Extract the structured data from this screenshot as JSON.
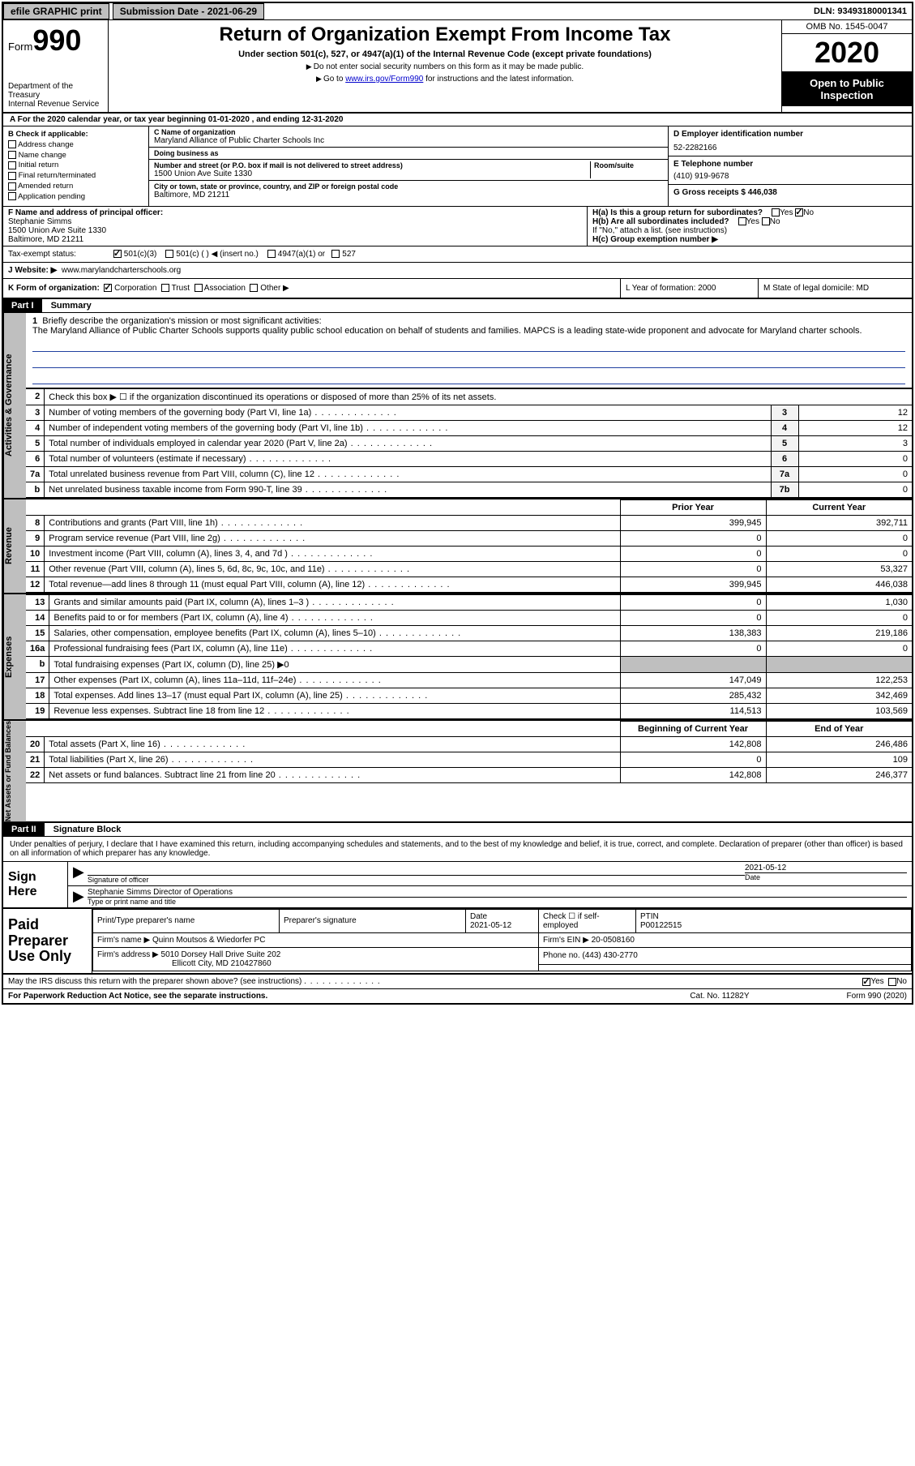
{
  "topbar": {
    "efile_label": "efile GRAPHIC print",
    "submission_label": "Submission Date - 2021-06-29",
    "dln_label": "DLN: 93493180001341"
  },
  "header": {
    "form_prefix": "Form",
    "form_number": "990",
    "dept1": "Department of the Treasury",
    "dept2": "Internal Revenue Service",
    "title": "Return of Organization Exempt From Income Tax",
    "subtitle": "Under section 501(c), 527, or 4947(a)(1) of the Internal Revenue Code (except private foundations)",
    "note1": "Do not enter social security numbers on this form as it may be made public.",
    "note2_pre": "Go to ",
    "note2_link": "www.irs.gov/Form990",
    "note2_post": " for instructions and the latest information.",
    "omb": "OMB No. 1545-0047",
    "year": "2020",
    "open": "Open to Public Inspection"
  },
  "row_a": "A For the 2020 calendar year, or tax year beginning 01-01-2020   , and ending 12-31-2020",
  "sec_b": {
    "label": "B Check if applicable:",
    "items": [
      "Address change",
      "Name change",
      "Initial return",
      "Final return/terminated",
      "Amended return",
      "Application pending"
    ]
  },
  "sec_c": {
    "name_label": "C Name of organization",
    "name": "Maryland Alliance of Public Charter Schools Inc",
    "dba_label": "Doing business as",
    "dba": "",
    "addr_label": "Number and street (or P.O. box if mail is not delivered to street address)",
    "room_label": "Room/suite",
    "addr": "1500 Union Ave Suite 1330",
    "city_label": "City or town, state or province, country, and ZIP or foreign postal code",
    "city": "Baltimore, MD  21211"
  },
  "sec_d": {
    "label": "D Employer identification number",
    "value": "52-2282166"
  },
  "sec_e": {
    "label": "E Telephone number",
    "value": "(410) 919-9678"
  },
  "sec_g": {
    "label": "G Gross receipts $ 446,038"
  },
  "sec_f": {
    "label": "F  Name and address of principal officer:",
    "name": "Stephanie Simms",
    "addr": "1500 Union Ave Suite 1330",
    "city": "Baltimore, MD  21211"
  },
  "sec_h": {
    "a_label": "H(a)  Is this a group return for subordinates?",
    "a_yes": "Yes",
    "a_no": "No",
    "b_label": "H(b)  Are all subordinates included?",
    "b_yes": "Yes",
    "b_no": "No",
    "b_note": "If \"No,\" attach a list. (see instructions)",
    "c_label": "H(c)  Group exemption number ▶"
  },
  "sec_i": {
    "label": "Tax-exempt status:",
    "opt1": "501(c)(3)",
    "opt2": "501(c) (   ) ◀ (insert no.)",
    "opt3": "4947(a)(1) or",
    "opt4": "527"
  },
  "sec_j": {
    "label": "J    Website: ▶",
    "value": "www.marylandcharterschools.org"
  },
  "sec_k": {
    "label": "K Form of organization:",
    "opts": [
      "Corporation",
      "Trust",
      "Association",
      "Other ▶"
    ],
    "l_label": "L Year of formation: 2000",
    "m_label": "M State of legal domicile: MD"
  },
  "part1": {
    "tag": "Part I",
    "title": "Summary"
  },
  "briefly": {
    "num": "1",
    "label": "Briefly describe the organization's mission or most significant activities:",
    "text": "The Maryland Alliance of Public Charter Schools supports quality public school education on behalf of students and families. MAPCS is a leading state-wide proponent and advocate for Maryland charter schools."
  },
  "gov_rows": [
    {
      "n": "2",
      "d": "Check this box ▶ ☐  if the organization discontinued its operations or disposed of more than 25% of its net assets.",
      "k": "",
      "v": ""
    },
    {
      "n": "3",
      "d": "Number of voting members of the governing body (Part VI, line 1a)",
      "k": "3",
      "v": "12"
    },
    {
      "n": "4",
      "d": "Number of independent voting members of the governing body (Part VI, line 1b)",
      "k": "4",
      "v": "12"
    },
    {
      "n": "5",
      "d": "Total number of individuals employed in calendar year 2020 (Part V, line 2a)",
      "k": "5",
      "v": "3"
    },
    {
      "n": "6",
      "d": "Total number of volunteers (estimate if necessary)",
      "k": "6",
      "v": "0"
    },
    {
      "n": "7a",
      "d": "Total unrelated business revenue from Part VIII, column (C), line 12",
      "k": "7a",
      "v": "0"
    },
    {
      "n": "b",
      "d": "Net unrelated business taxable income from Form 990-T, line 39",
      "k": "7b",
      "v": "0"
    }
  ],
  "pycy_hdr": {
    "py": "Prior Year",
    "cy": "Current Year"
  },
  "revenue_rows": [
    {
      "n": "8",
      "d": "Contributions and grants (Part VIII, line 1h)",
      "py": "399,945",
      "cy": "392,711"
    },
    {
      "n": "9",
      "d": "Program service revenue (Part VIII, line 2g)",
      "py": "0",
      "cy": "0"
    },
    {
      "n": "10",
      "d": "Investment income (Part VIII, column (A), lines 3, 4, and 7d )",
      "py": "0",
      "cy": "0"
    },
    {
      "n": "11",
      "d": "Other revenue (Part VIII, column (A), lines 5, 6d, 8c, 9c, 10c, and 11e)",
      "py": "0",
      "cy": "53,327"
    },
    {
      "n": "12",
      "d": "Total revenue—add lines 8 through 11 (must equal Part VIII, column (A), line 12)",
      "py": "399,945",
      "cy": "446,038"
    }
  ],
  "expense_rows": [
    {
      "n": "13",
      "d": "Grants and similar amounts paid (Part IX, column (A), lines 1–3 )",
      "py": "0",
      "cy": "1,030"
    },
    {
      "n": "14",
      "d": "Benefits paid to or for members (Part IX, column (A), line 4)",
      "py": "0",
      "cy": "0"
    },
    {
      "n": "15",
      "d": "Salaries, other compensation, employee benefits (Part IX, column (A), lines 5–10)",
      "py": "138,383",
      "cy": "219,186"
    },
    {
      "n": "16a",
      "d": "Professional fundraising fees (Part IX, column (A), line 11e)",
      "py": "0",
      "cy": "0"
    },
    {
      "n": "b",
      "d": "Total fundraising expenses (Part IX, column (D), line 25) ▶0",
      "py": "",
      "cy": "",
      "grey": true
    },
    {
      "n": "17",
      "d": "Other expenses (Part IX, column (A), lines 11a–11d, 11f–24e)",
      "py": "147,049",
      "cy": "122,253"
    },
    {
      "n": "18",
      "d": "Total expenses. Add lines 13–17 (must equal Part IX, column (A), line 25)",
      "py": "285,432",
      "cy": "342,469"
    },
    {
      "n": "19",
      "d": "Revenue less expenses. Subtract line 18 from line 12",
      "py": "114,513",
      "cy": "103,569"
    }
  ],
  "na_hdr": {
    "py": "Beginning of Current Year",
    "cy": "End of Year"
  },
  "na_rows": [
    {
      "n": "20",
      "d": "Total assets (Part X, line 16)",
      "py": "142,808",
      "cy": "246,486"
    },
    {
      "n": "21",
      "d": "Total liabilities (Part X, line 26)",
      "py": "0",
      "cy": "109"
    },
    {
      "n": "22",
      "d": "Net assets or fund balances. Subtract line 21 from line 20",
      "py": "142,808",
      "cy": "246,377"
    }
  ],
  "part2": {
    "tag": "Part II",
    "title": "Signature Block"
  },
  "decl": "Under penalties of perjury, I declare that I have examined this return, including accompanying schedules and statements, and to the best of my knowledge and belief, it is true, correct, and complete. Declaration of preparer (other than officer) is based on all information of which preparer has any knowledge.",
  "sign": {
    "label": "Sign Here",
    "sig_officer": "Signature of officer",
    "date_label": "Date",
    "date": "2021-05-12",
    "name_title": "Stephanie Simms  Director of Operations",
    "type_label": "Type or print name and title"
  },
  "prep": {
    "label": "Paid Preparer Use Only",
    "print_label": "Print/Type preparer's name",
    "sig_label": "Preparer's signature",
    "date_label": "Date",
    "date": "2021-05-12",
    "check_label": "Check ☐ if self-employed",
    "ptin_label": "PTIN",
    "ptin": "P00122515",
    "firm_name_label": "Firm's name    ▶",
    "firm_name": "Quinn Moutsos & Wiedorfer PC",
    "firm_ein_label": "Firm's EIN ▶",
    "firm_ein": "20-0508160",
    "firm_addr_label": "Firm's address ▶",
    "firm_addr1": "5010 Dorsey Hall Drive Suite 202",
    "firm_addr2": "Ellicott City, MD  210427860",
    "phone_label": "Phone no.",
    "phone": "(443) 430-2770"
  },
  "discuss": {
    "text": "May the IRS discuss this return with the preparer shown above? (see instructions)",
    "yes": "Yes",
    "no": "No"
  },
  "footer": {
    "left": "For Paperwork Reduction Act Notice, see the separate instructions.",
    "mid": "Cat. No. 11282Y",
    "right": "Form 990 (2020)"
  },
  "sidebars": {
    "gov": "Activities & Governance",
    "rev": "Revenue",
    "exp": "Expenses",
    "na": "Net Assets or Fund Balances"
  }
}
